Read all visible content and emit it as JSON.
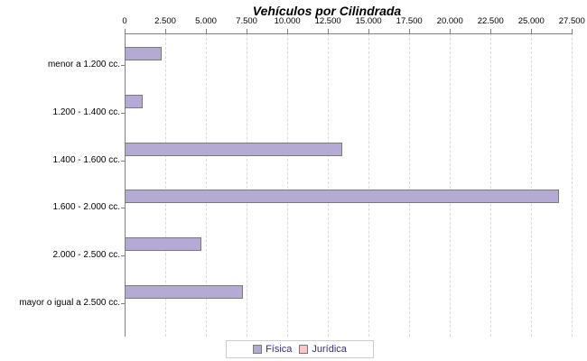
{
  "chart_data": {
    "type": "bar",
    "orientation": "horizontal",
    "title": "Vehículos por Cilindrada",
    "categories": [
      "menor a 1.200 cc.",
      "1.200 - 1.400 cc.",
      "1.400 - 1.600 cc.",
      "1.600 - 2.000 cc.",
      "2.000 - 2.500 cc.",
      "mayor o igual a 2.500 cc."
    ],
    "series": [
      {
        "name": "Física",
        "color": "#b5a9d6",
        "values": [
          2250,
          1100,
          13400,
          26700,
          4700,
          7250
        ]
      },
      {
        "name": "Jurídica",
        "color": "#f9c7c7",
        "values": [
          0,
          0,
          0,
          0,
          0,
          0
        ]
      }
    ],
    "x_axis": {
      "min": 0,
      "max": 27500,
      "tick_interval": 2500,
      "tick_labels": [
        "0",
        "2.500",
        "5.000",
        "7.500",
        "10.000",
        "12.500",
        "15.000",
        "17.500",
        "20.000",
        "22.500",
        "25.000",
        "27.500"
      ]
    },
    "grid": true,
    "gridline_style": "dashed",
    "legend_position": "bottom"
  },
  "colors": {
    "background": "#ffffff",
    "axis": "#808080",
    "gridline": "#dadada",
    "bar_border": "#7a7a7a",
    "text": "#000000",
    "legend_text": "#3a2d7a",
    "legend_border": "#cccccc"
  }
}
